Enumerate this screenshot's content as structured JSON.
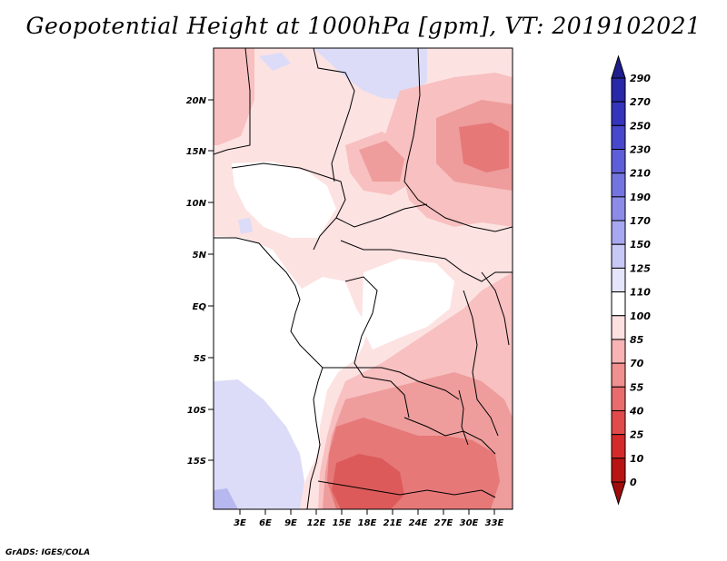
{
  "title": "Geopotential Height at 1000hPa [gpm], VT: 2019102021",
  "credit": "GrADS: IGES/COLA",
  "map": {
    "lat_labels": [
      "20N",
      "15N",
      "10N",
      "5N",
      "EQ",
      "5S",
      "10S",
      "15S"
    ],
    "lon_labels": [
      "3E",
      "6E",
      "9E",
      "12E",
      "15E",
      "18E",
      "21E",
      "24E",
      "27E",
      "30E",
      "33E"
    ]
  },
  "colorbar": {
    "labels": [
      "290",
      "270",
      "250",
      "230",
      "210",
      "190",
      "170",
      "150",
      "125",
      "110",
      "100",
      "85",
      "70",
      "55",
      "40",
      "25",
      "10",
      "0"
    ],
    "colors": [
      "#1e1e8c",
      "#2828a8",
      "#3434bc",
      "#4848cc",
      "#5e5ed8",
      "#7474e0",
      "#8c8ce8",
      "#a8a8f0",
      "#c8c8f6",
      "#e4e4fa",
      "#ffffff",
      "#fde0e0",
      "#f8b4b4",
      "#f09090",
      "#e86c6c",
      "#e04a4a",
      "#d42a2a",
      "#b81414",
      "#a00c0c"
    ]
  }
}
